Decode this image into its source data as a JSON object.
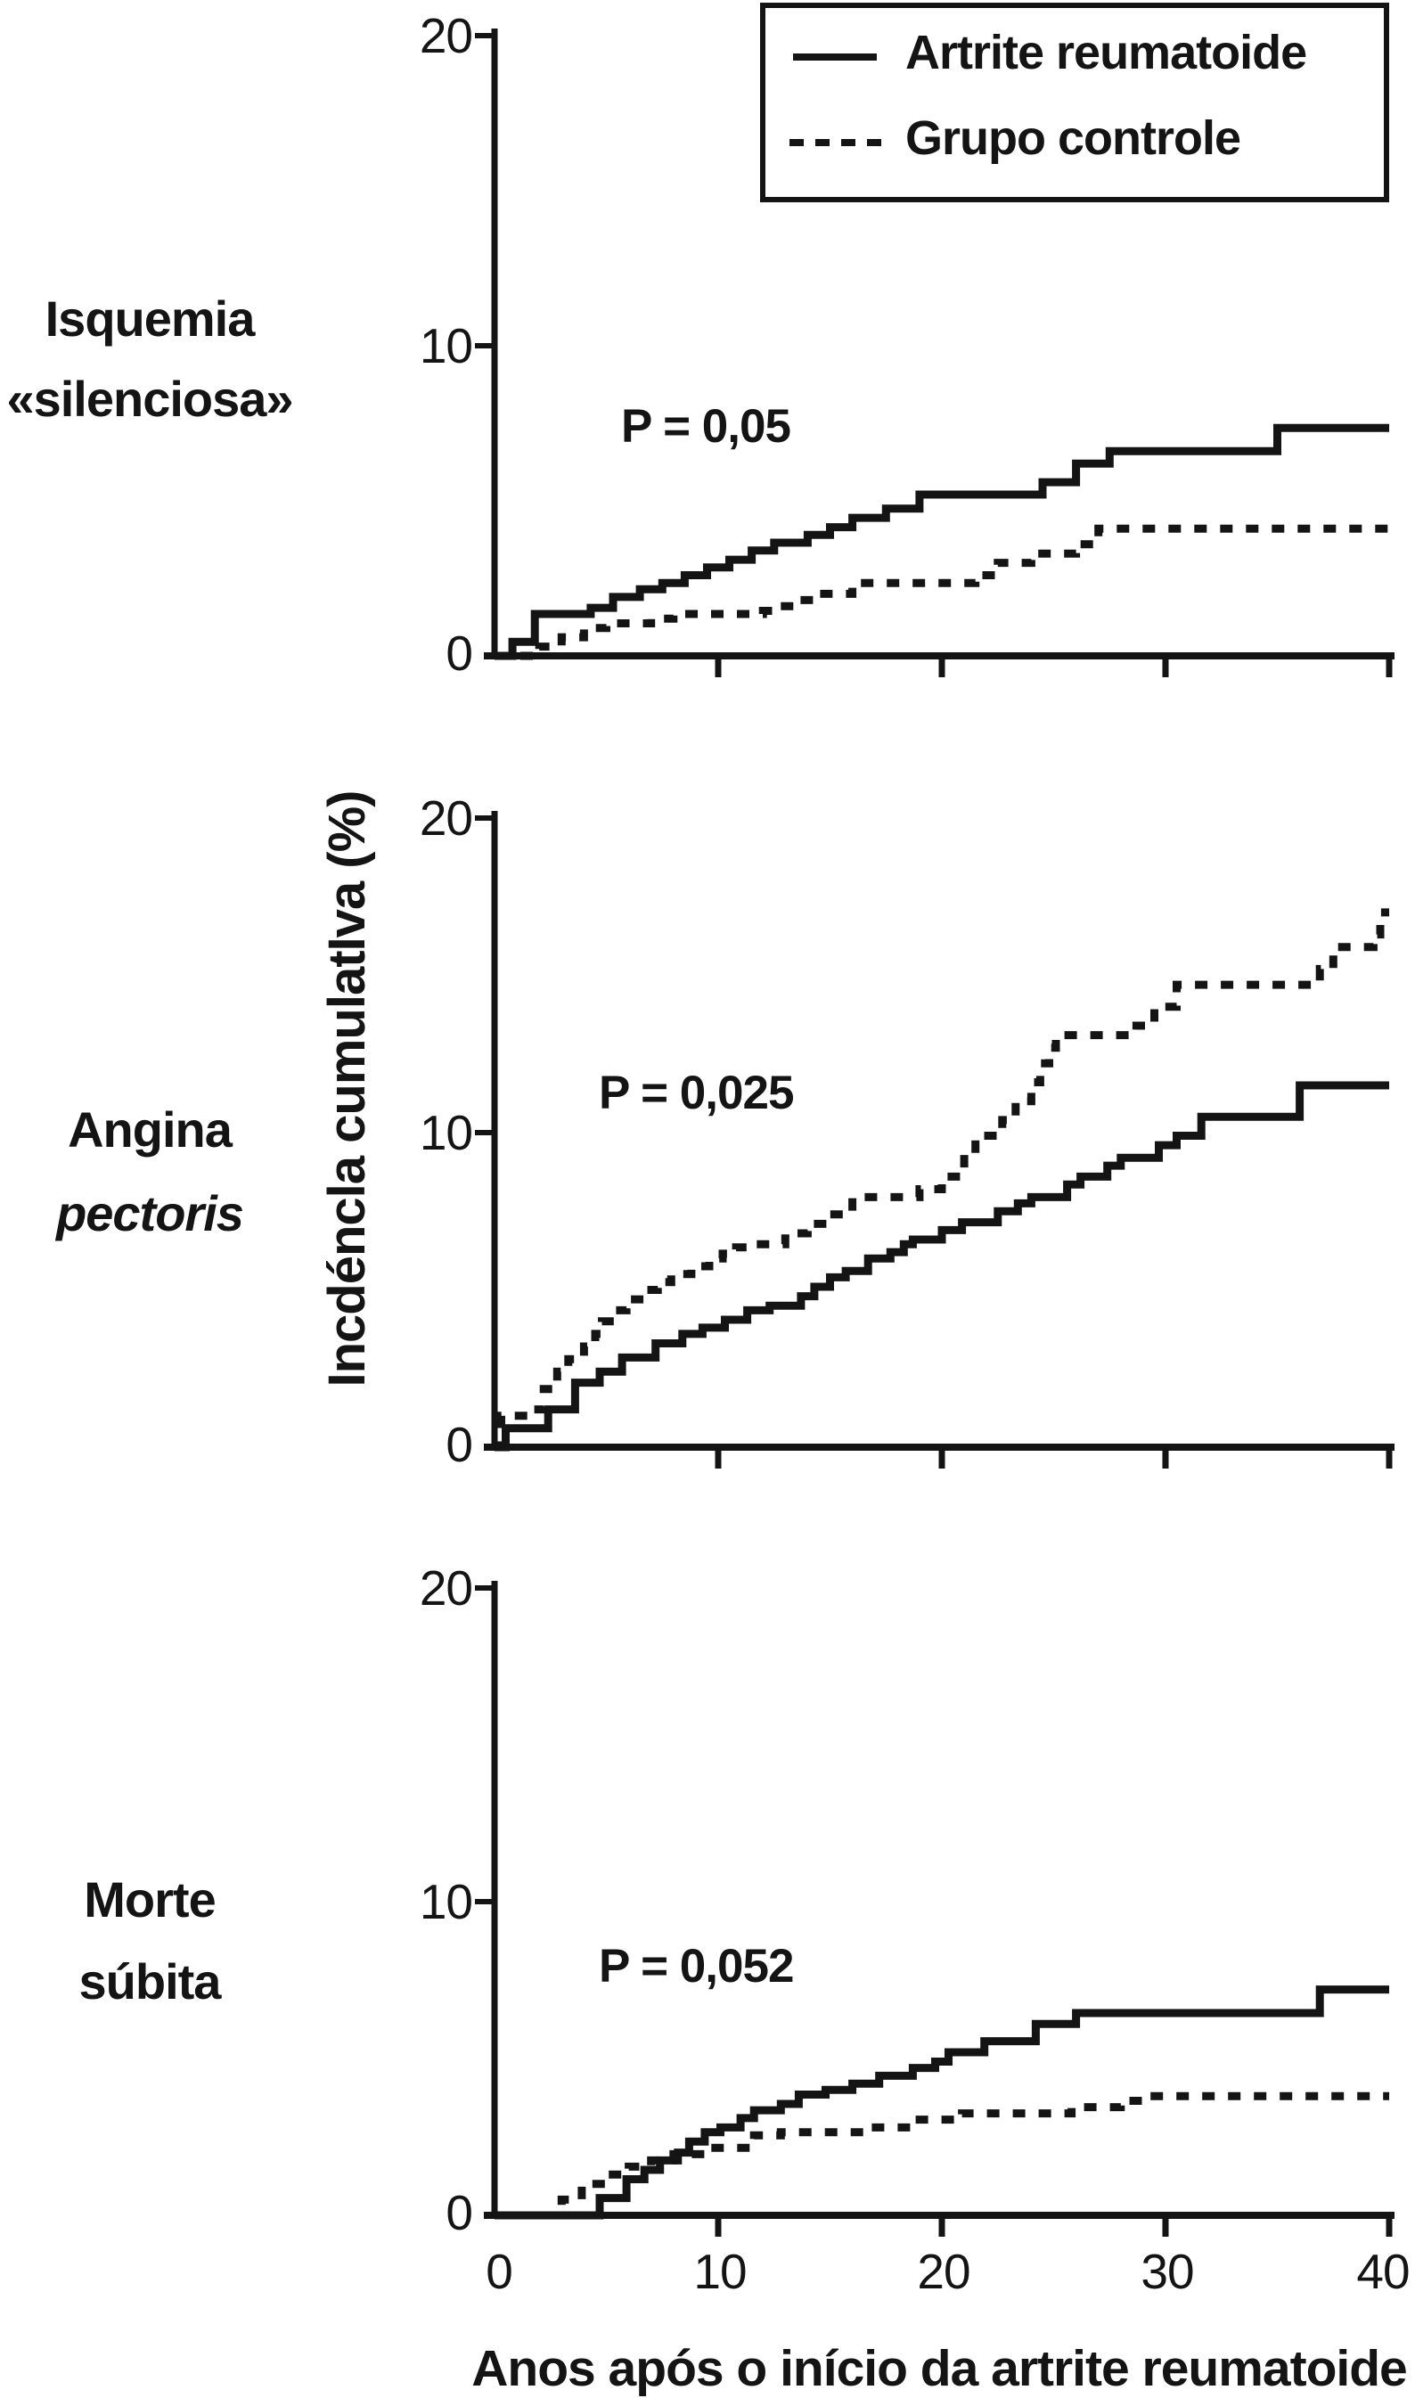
{
  "figure": {
    "legend": {
      "items": [
        {
          "label": "Artrite reumatoide",
          "style": "solid"
        },
        {
          "label": "Grupo controle",
          "style": "dashed"
        }
      ]
    },
    "y_axis_label": "Incdéncla cumulatIva (%)",
    "x_axis_label": "Anos após o início da artrite reumatoide",
    "x_tick_labels": [
      "0",
      "10",
      "20",
      "30",
      "40"
    ],
    "panels": [
      {
        "title_line1": "Isquemia",
        "title_line2": "«silenciosa»",
        "p_value": "P = 0,05",
        "y_ticks": [
          "20",
          "10",
          "0"
        ]
      },
      {
        "title_line1": "Angina",
        "title_line2": "pectoris",
        "p_value": "P = 0,025",
        "y_ticks": [
          "20",
          "10",
          "0"
        ]
      },
      {
        "title_line1": "Morte",
        "title_line2": "súbita",
        "p_value": "P = 0,052",
        "y_ticks": [
          "20",
          "10",
          "0"
        ]
      }
    ],
    "ink_color": "#141414"
  },
  "chart_data": [
    {
      "type": "line",
      "step": true,
      "title": "Isquemia «silenciosa»",
      "annotation": "P = 0,05",
      "xlabel": "Anos após o início da artrite reumatoide",
      "ylabel": "Incdéncla cumulatIva (%)",
      "xlim": [
        0,
        40
      ],
      "ylim": [
        0,
        20
      ],
      "xticks": [
        0,
        10,
        20,
        30,
        40
      ],
      "yticks": [
        0,
        10,
        20
      ],
      "grid": false,
      "legend_position": "top-right",
      "series": [
        {
          "name": "Artrite reumatoide",
          "style": "solid",
          "points": [
            [
              0,
              0
            ],
            [
              0.8,
              0.45
            ],
            [
              1.8,
              1.35
            ],
            [
              4.3,
              1.55
            ],
            [
              5.3,
              1.9
            ],
            [
              6.5,
              2.15
            ],
            [
              7.5,
              2.35
            ],
            [
              8.5,
              2.6
            ],
            [
              9.5,
              2.85
            ],
            [
              10.5,
              3.1
            ],
            [
              11.5,
              3.4
            ],
            [
              12.5,
              3.65
            ],
            [
              14,
              3.9
            ],
            [
              15,
              4.15
            ],
            [
              16,
              4.45
            ],
            [
              17.5,
              4.75
            ],
            [
              19,
              5.2
            ],
            [
              24.5,
              5.6
            ],
            [
              26,
              6.2
            ],
            [
              27.5,
              6.6
            ],
            [
              35,
              7.35
            ],
            [
              40,
              7.35
            ]
          ]
        },
        {
          "name": "Grupo controle",
          "style": "dashed",
          "points": [
            [
              0,
              0
            ],
            [
              2,
              0.3
            ],
            [
              3,
              0.6
            ],
            [
              4,
              0.9
            ],
            [
              5,
              1.05
            ],
            [
              7,
              1.2
            ],
            [
              8,
              1.35
            ],
            [
              12,
              1.45
            ],
            [
              12.7,
              1.6
            ],
            [
              13.5,
              1.8
            ],
            [
              14.5,
              2.0
            ],
            [
              16,
              2.35
            ],
            [
              21.5,
              2.6
            ],
            [
              22.5,
              3.0
            ],
            [
              24,
              3.3
            ],
            [
              26,
              3.6
            ],
            [
              27,
              4.1
            ],
            [
              40,
              4.1
            ]
          ]
        }
      ]
    },
    {
      "type": "line",
      "step": true,
      "title": "Angina pectoris",
      "annotation": "P = 0,025",
      "xlabel": "Anos após o início da artrite reumatoide",
      "ylabel": "Incdéncla cumulatIva (%)",
      "xlim": [
        0,
        40
      ],
      "ylim": [
        0,
        20
      ],
      "xticks": [
        0,
        10,
        20,
        30,
        40
      ],
      "yticks": [
        0,
        10,
        20
      ],
      "grid": false,
      "series": [
        {
          "name": "Artrite reumatoide",
          "style": "solid",
          "points": [
            [
              0,
              0
            ],
            [
              0.5,
              0.6
            ],
            [
              2.4,
              1.2
            ],
            [
              3.6,
              2.05
            ],
            [
              4.7,
              2.4
            ],
            [
              5.7,
              2.85
            ],
            [
              7.2,
              3.3
            ],
            [
              8.4,
              3.6
            ],
            [
              9.3,
              3.8
            ],
            [
              10.3,
              4.05
            ],
            [
              11.3,
              4.35
            ],
            [
              12.3,
              4.5
            ],
            [
              13.7,
              4.8
            ],
            [
              14.3,
              5.1
            ],
            [
              15,
              5.4
            ],
            [
              15.7,
              5.6
            ],
            [
              16.7,
              6.0
            ],
            [
              17.7,
              6.2
            ],
            [
              18.3,
              6.45
            ],
            [
              18.7,
              6.6
            ],
            [
              20,
              6.9
            ],
            [
              20.9,
              7.15
            ],
            [
              22.5,
              7.5
            ],
            [
              23.4,
              7.75
            ],
            [
              24,
              7.95
            ],
            [
              25.6,
              8.35
            ],
            [
              26.2,
              8.6
            ],
            [
              27.4,
              8.95
            ],
            [
              28,
              9.2
            ],
            [
              29.7,
              9.6
            ],
            [
              30.5,
              9.9
            ],
            [
              31.6,
              10.5
            ],
            [
              36,
              11.5
            ],
            [
              40,
              11.5
            ]
          ]
        },
        {
          "name": "Grupo controle",
          "style": "dashed",
          "points": [
            [
              0,
              0
            ],
            [
              0.3,
              1.0
            ],
            [
              1.7,
              1.2
            ],
            [
              2.2,
              1.85
            ],
            [
              2.8,
              2.4
            ],
            [
              3.3,
              2.8
            ],
            [
              4,
              3.2
            ],
            [
              4.5,
              3.6
            ],
            [
              4.8,
              4.0
            ],
            [
              5.4,
              4.35
            ],
            [
              5.9,
              4.7
            ],
            [
              6.7,
              5.0
            ],
            [
              7.3,
              5.25
            ],
            [
              7.9,
              5.5
            ],
            [
              8.8,
              5.75
            ],
            [
              9.6,
              6.0
            ],
            [
              10.2,
              6.15
            ],
            [
              10.8,
              6.35
            ],
            [
              11.5,
              6.45
            ],
            [
              13,
              6.8
            ],
            [
              14,
              7.1
            ],
            [
              15,
              7.4
            ],
            [
              16,
              7.95
            ],
            [
              19,
              8.2
            ],
            [
              20,
              8.6
            ],
            [
              21,
              9.3
            ],
            [
              21.5,
              9.9
            ],
            [
              22.7,
              10.4
            ],
            [
              23.3,
              11.0
            ],
            [
              24,
              11.6
            ],
            [
              24.4,
              12.2
            ],
            [
              24.8,
              12.7
            ],
            [
              25.1,
              13.1
            ],
            [
              28.7,
              13.4
            ],
            [
              29.5,
              14.0
            ],
            [
              30.5,
              14.7
            ],
            [
              36.9,
              15.2
            ],
            [
              37.5,
              15.9
            ],
            [
              39.3,
              16.3
            ],
            [
              39.6,
              17.0
            ],
            [
              40,
              17.0
            ]
          ]
        }
      ]
    },
    {
      "type": "line",
      "step": true,
      "title": "Morte súbita",
      "annotation": "P = 0,052",
      "xlabel": "Anos após o início da artrite reumatoide",
      "ylabel": "Incdéncla cumulatIva (%)",
      "xlim": [
        0,
        40
      ],
      "ylim": [
        0,
        20
      ],
      "xticks": [
        0,
        10,
        20,
        30,
        40
      ],
      "yticks": [
        0,
        10,
        20
      ],
      "grid": false,
      "series": [
        {
          "name": "Artrite reumatoide",
          "style": "solid",
          "points": [
            [
              0,
              0
            ],
            [
              4.7,
              0.55
            ],
            [
              5.9,
              1.15
            ],
            [
              6.7,
              1.45
            ],
            [
              7.4,
              1.75
            ],
            [
              8.2,
              2.0
            ],
            [
              8.7,
              2.35
            ],
            [
              9.4,
              2.65
            ],
            [
              10.1,
              2.8
            ],
            [
              11,
              3.1
            ],
            [
              11.6,
              3.35
            ],
            [
              12.8,
              3.55
            ],
            [
              13.6,
              3.85
            ],
            [
              14.8,
              4.0
            ],
            [
              16,
              4.2
            ],
            [
              17.2,
              4.45
            ],
            [
              18.7,
              4.7
            ],
            [
              19.7,
              4.9
            ],
            [
              20.3,
              5.2
            ],
            [
              21.9,
              5.55
            ],
            [
              24.2,
              6.1
            ],
            [
              26,
              6.45
            ],
            [
              36.9,
              7.2
            ],
            [
              40,
              7.2
            ]
          ]
        },
        {
          "name": "Grupo controle",
          "style": "dashed",
          "points": [
            [
              0,
              0
            ],
            [
              3,
              0.5
            ],
            [
              3.9,
              1.0
            ],
            [
              5,
              1.3
            ],
            [
              6,
              1.55
            ],
            [
              7,
              1.75
            ],
            [
              8,
              1.95
            ],
            [
              9.2,
              2.15
            ],
            [
              11.6,
              2.55
            ],
            [
              12.8,
              2.65
            ],
            [
              16.8,
              2.8
            ],
            [
              18.6,
              3.05
            ],
            [
              20.9,
              3.25
            ],
            [
              25.8,
              3.45
            ],
            [
              28,
              3.65
            ],
            [
              29,
              3.8
            ],
            [
              40,
              3.8
            ]
          ]
        }
      ]
    }
  ]
}
